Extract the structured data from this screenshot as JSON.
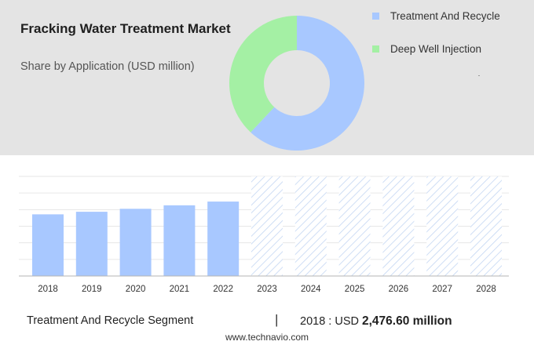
{
  "title": "Fracking Water Treatment Market",
  "subtitle": "Share by Application (USD million)",
  "colors": {
    "treatment": "#a8c8ff",
    "deepwell": "#a4f0a4",
    "grid": "#e6e6e6",
    "hatch": "#c3d6f3"
  },
  "chart_data": [
    {
      "type": "pie",
      "donut": true,
      "slices": [
        {
          "label": "Treatment And Recycle",
          "value": 62
        },
        {
          "label": "Deep Well Injection",
          "value": 38
        }
      ],
      "legend_position": "top-right"
    },
    {
      "type": "bar",
      "categories": [
        "2018",
        "2019",
        "2020",
        "2021",
        "2022",
        "2023",
        "2024",
        "2025",
        "2026",
        "2027",
        "2028"
      ],
      "values": [
        2476.6,
        2580,
        2700,
        2840,
        2990,
        null,
        null,
        null,
        null,
        null,
        null
      ],
      "forecast_categories": [
        "2023",
        "2024",
        "2025",
        "2026",
        "2027",
        "2028"
      ],
      "ylim": [
        0,
        4000
      ],
      "grid": true
    }
  ],
  "footer": {
    "segment": "Treatment And Recycle Segment",
    "separator": "|",
    "year_prefix": "2018 : USD",
    "value": "2,476.60 million"
  },
  "source": "www.technavio.com"
}
